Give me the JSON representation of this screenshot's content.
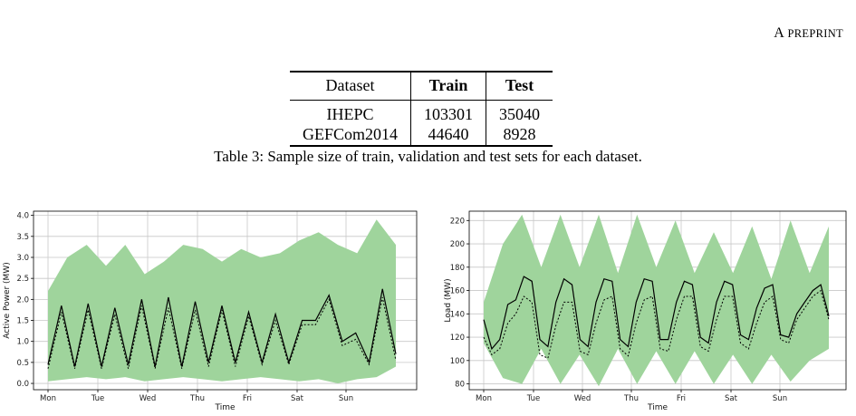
{
  "header": {
    "prefix": "A ",
    "smallcaps": "PREPRINT"
  },
  "table": {
    "headers": [
      "Dataset",
      "Train",
      "Test"
    ],
    "rows": [
      [
        "IHEPC",
        "103301",
        "35040"
      ],
      [
        "GEFCom2014",
        "44640",
        "8928"
      ]
    ],
    "caption": "Table 3: Sample size of train, validation and test sets for each dataset."
  },
  "colors": {
    "band": "#9fd49c",
    "line": "#000000"
  },
  "chart_data": [
    {
      "type": "line",
      "xlabel": "Time",
      "ylabel": "Active Power (MW)",
      "categories": [
        "Mon",
        "Tue",
        "Wed",
        "Thu",
        "Fri",
        "Sat",
        "Sun"
      ],
      "ylim": [
        -0.15,
        4.1
      ],
      "yticks": [
        "0.0",
        "0.5",
        "1.0",
        "1.5",
        "2.0",
        "2.5",
        "3.0",
        "3.5",
        "4.0"
      ],
      "ytick_values": [
        0,
        0.5,
        1,
        1.5,
        2,
        2.5,
        3,
        3.5,
        4
      ],
      "band_upper": [
        2.2,
        3.0,
        3.3,
        2.8,
        3.3,
        2.6,
        2.9,
        3.3,
        3.2,
        2.9,
        3.2,
        3.0,
        3.1,
        3.4,
        3.6,
        3.3,
        3.1,
        3.9,
        3.3
      ],
      "band_lower": [
        0.05,
        0.1,
        0.15,
        0.1,
        0.15,
        0.05,
        0.1,
        0.15,
        0.1,
        0.05,
        0.1,
        0.15,
        0.1,
        0.05,
        0.1,
        0.0,
        0.1,
        0.15,
        0.4
      ],
      "series": [
        {
          "solid": [
            0.45,
            1.85,
            0.4,
            1.9,
            0.4,
            1.8,
            0.45,
            2.0,
            0.4,
            2.05,
            0.4,
            1.95,
            0.5,
            1.85,
            0.5,
            1.7,
            0.5,
            1.65,
            0.5,
            1.5,
            1.5,
            2.1,
            1.0,
            1.2,
            0.5,
            2.25,
            0.7
          ]
        },
        {
          "dashed": [
            0.35,
            1.7,
            0.35,
            1.75,
            0.35,
            1.65,
            0.35,
            1.85,
            0.35,
            1.8,
            0.35,
            1.75,
            0.4,
            1.75,
            0.4,
            1.6,
            0.45,
            1.5,
            0.45,
            1.4,
            1.4,
            2.0,
            0.9,
            1.05,
            0.45,
            2.05,
            0.55
          ]
        }
      ]
    },
    {
      "type": "line",
      "xlabel": "Time",
      "ylabel": "Load (MW)",
      "categories": [
        "Mon",
        "Tue",
        "Wed",
        "Thu",
        "Fri",
        "Sat",
        "Sun"
      ],
      "ylim": [
        75,
        228
      ],
      "yticks": [
        "80",
        "100",
        "120",
        "140",
        "160",
        "180",
        "200",
        "220"
      ],
      "ytick_values": [
        80,
        100,
        120,
        140,
        160,
        180,
        200,
        220
      ],
      "band_upper": [
        150,
        200,
        225,
        180,
        225,
        180,
        225,
        175,
        225,
        180,
        220,
        175,
        210,
        175,
        215,
        170,
        220,
        175,
        215
      ],
      "band_lower": [
        115,
        85,
        80,
        110,
        80,
        105,
        78,
        110,
        80,
        108,
        80,
        108,
        80,
        105,
        80,
        105,
        82,
        100,
        110
      ],
      "series": [
        {
          "solid": [
            135,
            110,
            118,
            148,
            152,
            172,
            168,
            118,
            112,
            150,
            170,
            165,
            118,
            112,
            150,
            170,
            168,
            118,
            112,
            150,
            170,
            168,
            118,
            118,
            150,
            168,
            165,
            120,
            115,
            150,
            168,
            165,
            122,
            118,
            145,
            162,
            165,
            122,
            120,
            140,
            150,
            160,
            165,
            138
          ]
        },
        {
          "dashed": [
            120,
            105,
            110,
            132,
            140,
            155,
            150,
            105,
            102,
            130,
            150,
            150,
            108,
            105,
            132,
            152,
            155,
            110,
            104,
            132,
            152,
            155,
            110,
            108,
            135,
            155,
            155,
            112,
            108,
            135,
            155,
            155,
            115,
            110,
            132,
            150,
            155,
            118,
            115,
            135,
            145,
            155,
            160,
            135
          ]
        }
      ]
    }
  ]
}
